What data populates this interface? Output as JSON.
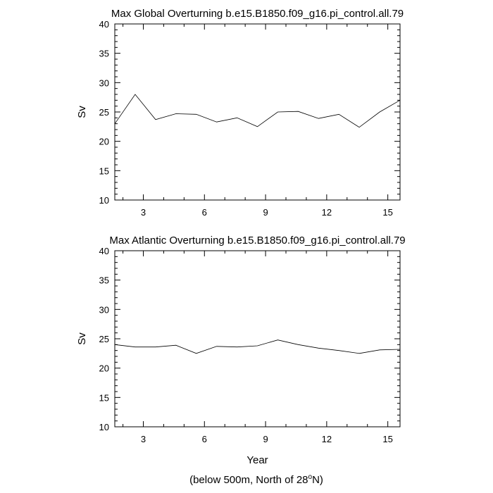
{
  "chart_data": [
    {
      "type": "line",
      "title": "Max Global Overturning b.e15.B1850.f09_g16.pi_control.all.79",
      "xlabel": "",
      "ylabel": "Sv",
      "xlim": [
        1.6,
        15.6
      ],
      "ylim": [
        10,
        40
      ],
      "x_ticks": [
        3,
        6,
        9,
        12,
        15
      ],
      "y_ticks": [
        10,
        15,
        20,
        25,
        30,
        35,
        40
      ],
      "x": [
        1.6,
        2.6,
        3.6,
        4.6,
        5.6,
        6.6,
        7.6,
        8.6,
        9.6,
        10.6,
        11.6,
        12.6,
        13.6,
        14.6,
        15.6
      ],
      "values": [
        23.0,
        28.0,
        23.7,
        24.7,
        24.6,
        23.3,
        24.0,
        22.5,
        25.0,
        25.1,
        23.9,
        24.6,
        22.4,
        25.0,
        27.0
      ],
      "grid": false
    },
    {
      "type": "line",
      "title": "Max Atlantic Overturning b.e15.B1850.f09_g16.pi_control.all.79",
      "xlabel": "Year",
      "ylabel": "Sv",
      "xlim": [
        1.6,
        15.6
      ],
      "ylim": [
        10,
        40
      ],
      "x_ticks": [
        3,
        6,
        9,
        12,
        15
      ],
      "y_ticks": [
        10,
        15,
        20,
        25,
        30,
        35,
        40
      ],
      "x": [
        1.6,
        2.6,
        3.6,
        4.6,
        5.6,
        6.6,
        7.6,
        8.6,
        9.6,
        10.6,
        11.6,
        12.6,
        13.6,
        14.6,
        15.6
      ],
      "values": [
        24.0,
        23.6,
        23.6,
        23.9,
        22.5,
        23.7,
        23.6,
        23.8,
        24.8,
        24.0,
        23.4,
        23.0,
        22.5,
        23.1,
        23.2
      ],
      "grid": false
    }
  ],
  "footnote": {
    "prefix": "(below 500m, North of 28",
    "superscript": "o",
    "suffix": "N)"
  }
}
